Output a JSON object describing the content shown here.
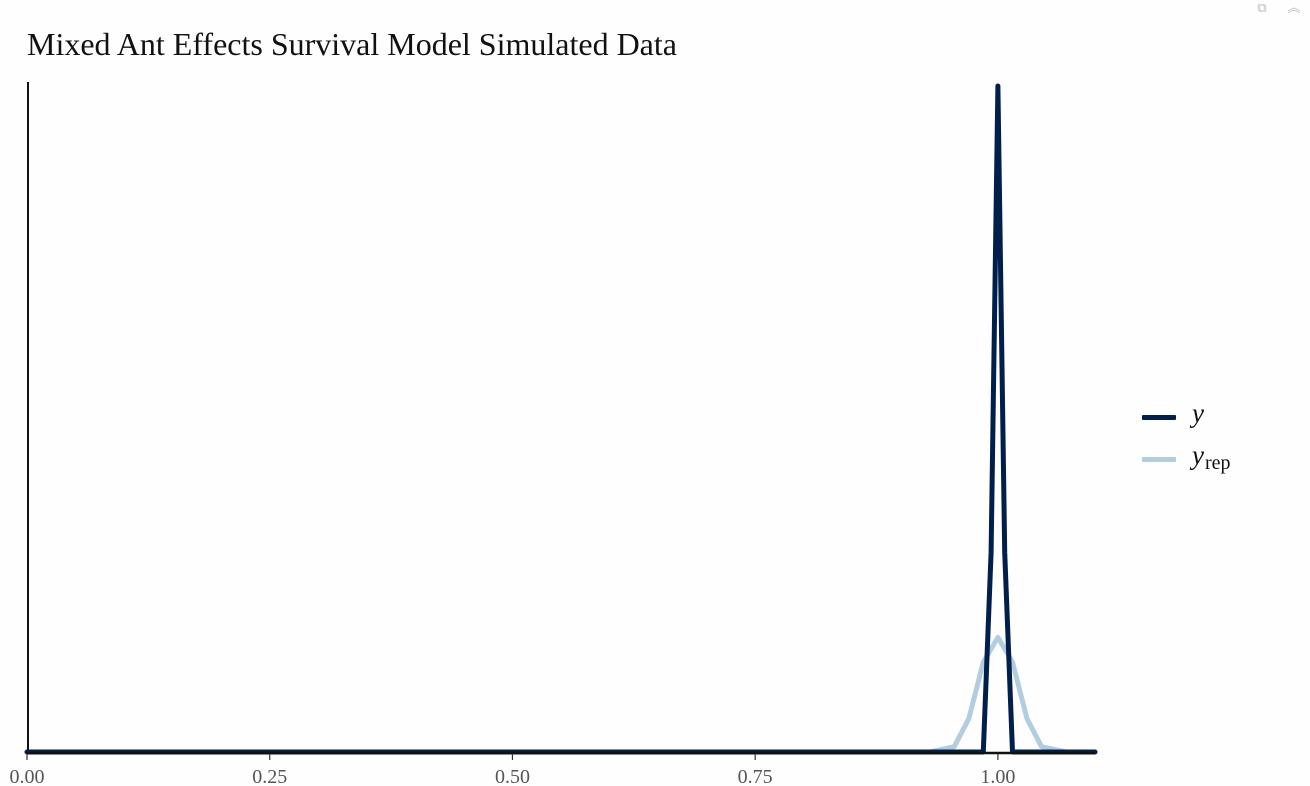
{
  "toolbar": {
    "icons": [
      "expand-icon",
      "collapse-chevron-icon"
    ],
    "expand_glyph": "⧉",
    "collapse_glyph": "︽"
  },
  "chart_data": {
    "type": "line",
    "title": "Mixed Ant Effects Survival Model Simulated Data",
    "xlabel": "",
    "ylabel": "",
    "xlim": [
      0.0,
      1.1
    ],
    "x_ticks": [
      0.0,
      0.25,
      0.5,
      0.75,
      1.0
    ],
    "x_tick_labels": [
      "0.00",
      "0.25",
      "0.50",
      "0.75",
      "1.00"
    ],
    "y_ticks_shown": false,
    "grid": false,
    "legend_position": "right",
    "series": [
      {
        "name": "y",
        "color": "#011f4b",
        "x": [
          0.0,
          0.96,
          0.985,
          0.993,
          1.0,
          1.007,
          1.015,
          1.04,
          1.1
        ],
        "y": [
          0.0,
          0.0,
          0.0,
          0.3,
          1.0,
          0.3,
          0.0,
          0.0,
          0.0
        ]
      },
      {
        "name": "y_rep",
        "color": "#b3cde0",
        "x": [
          0.0,
          0.93,
          0.955,
          0.97,
          0.985,
          1.0,
          1.015,
          1.03,
          1.045,
          1.07,
          1.1
        ],
        "y": [
          0.0,
          0.0,
          0.008,
          0.05,
          0.135,
          0.172,
          0.135,
          0.05,
          0.008,
          0.0,
          0.0
        ]
      }
    ],
    "legend": [
      {
        "label": "y",
        "subscript": "",
        "color": "#011f4b"
      },
      {
        "label": "y",
        "subscript": "rep",
        "color": "#b3cde0"
      }
    ]
  }
}
